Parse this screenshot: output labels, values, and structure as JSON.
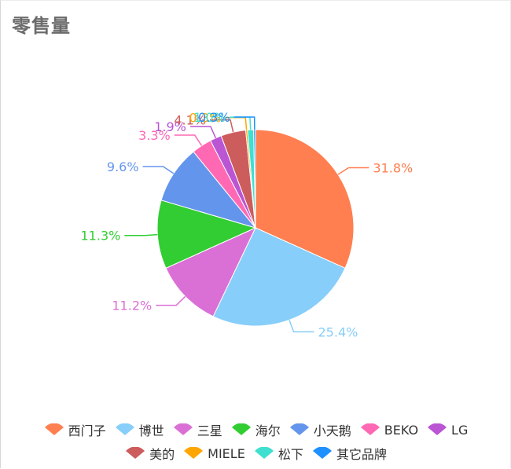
{
  "title": "零售量",
  "chart_data": {
    "type": "pie",
    "title": "零售量",
    "slices": [
      {
        "name": "西门子",
        "value": 31.8,
        "label": "31.8%",
        "color": "#FF7F50"
      },
      {
        "name": "博世",
        "value": 25.4,
        "label": "25.4%",
        "color": "#87CEFA"
      },
      {
        "name": "三星",
        "value": 11.2,
        "label": "11.2%",
        "color": "#DA70D6"
      },
      {
        "name": "海尔",
        "value": 11.3,
        "label": "11.3%",
        "color": "#32CD32"
      },
      {
        "name": "小天鹅",
        "value": 9.6,
        "label": "9.6%",
        "color": "#6495ED"
      },
      {
        "name": "BEKO",
        "value": 3.3,
        "label": "3.3%",
        "color": "#FF69B4"
      },
      {
        "name": "LG",
        "value": 1.9,
        "label": "1.9%",
        "color": "#BA55D3"
      },
      {
        "name": "美的",
        "value": 4.1,
        "label": "4.1%",
        "color": "#CD5C5C"
      },
      {
        "name": "MIELE",
        "value": 0.3,
        "label": "0.3%",
        "color": "#FFA500"
      },
      {
        "name": "松下",
        "value": 1.0,
        "label": "1.0%",
        "color": "#40E0D0"
      },
      {
        "name": "其它品牌",
        "value": 0.3,
        "label": "0.3%",
        "color": "#1E90FF"
      }
    ],
    "legend_position": "bottom"
  }
}
